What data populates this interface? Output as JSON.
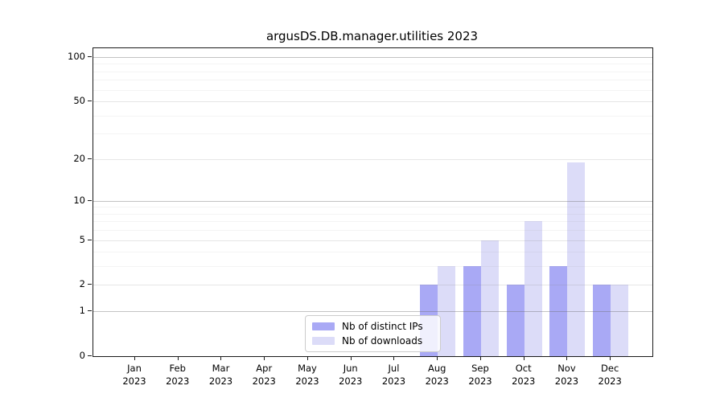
{
  "chart_data": {
    "type": "bar",
    "title": "argusDS.DB.manager.utilities 2023",
    "categories": [
      "Jan",
      "Feb",
      "Mar",
      "Apr",
      "May",
      "Jun",
      "Jul",
      "Aug",
      "Sep",
      "Oct",
      "Nov",
      "Dec"
    ],
    "x_tick_second_line": "2023",
    "series": [
      {
        "name": "Nb of distinct IPs",
        "color": "#a9a9f5",
        "values": [
          0,
          0,
          0,
          0,
          0,
          0,
          0,
          2,
          3,
          2,
          3,
          2
        ]
      },
      {
        "name": "Nb of downloads",
        "color": "#dcdcf8",
        "values": [
          0,
          0,
          0,
          0,
          0,
          0,
          0,
          3,
          5,
          7,
          19,
          2
        ]
      }
    ],
    "y_scale": "log1p",
    "y_ticks": [
      0,
      1,
      2,
      5,
      10,
      20,
      50,
      100
    ],
    "y_tick_labels": [
      "0",
      "1",
      "2",
      "5",
      "10",
      "20",
      "50",
      "100"
    ],
    "ylim": [
      0,
      115
    ],
    "grid": {
      "major_values": [
        1,
        10,
        100
      ],
      "mid_values": [
        2,
        5,
        20,
        50
      ],
      "minor_values": [
        3,
        4,
        6,
        7,
        8,
        9,
        30,
        40,
        60,
        70,
        80,
        90
      ],
      "drawn_above_bars": true
    },
    "legend_position": "bottom-center-inside"
  },
  "legend": {
    "items": [
      {
        "label": "Nb of distinct IPs",
        "color": "#a9a9f5"
      },
      {
        "label": "Nb of downloads",
        "color": "#dcdcf8"
      }
    ]
  }
}
